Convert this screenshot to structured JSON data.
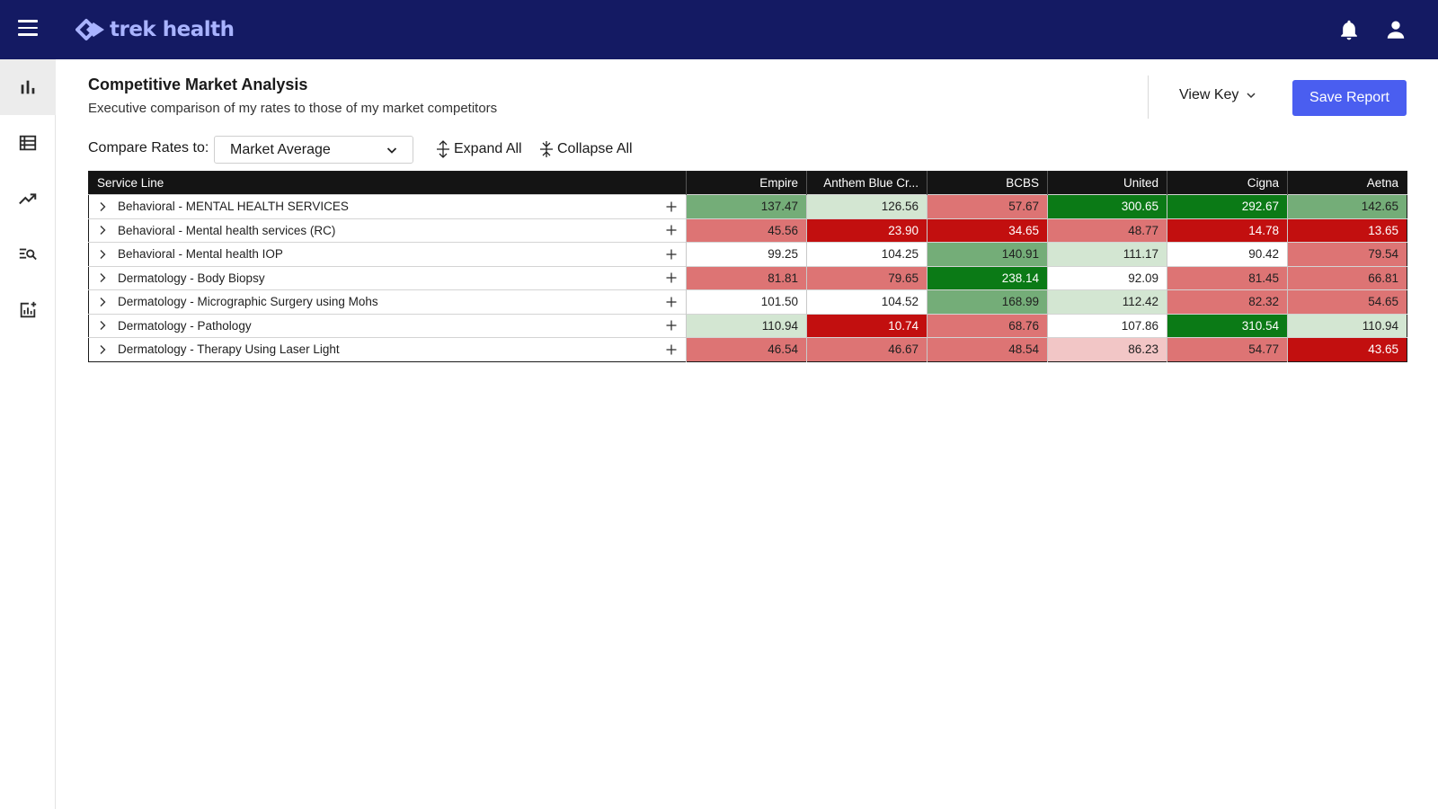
{
  "app": {
    "brand": "trek health"
  },
  "colors": {
    "topbar": "#141a63",
    "accent": "#4a5ef0",
    "strong_green": "#0b7a16",
    "medium_green": "#74ad78",
    "light_green": "#d3e6d2",
    "light_red": "#f2c6c6",
    "medium_red": "#dd7474",
    "strong_red": "#c20f0f"
  },
  "topbar": {
    "icons": [
      "menu-icon",
      "bell-icon",
      "user-icon"
    ]
  },
  "sidebar": {
    "items": [
      {
        "icon": "bar-chart-icon",
        "active": true
      },
      {
        "icon": "table-list-icon",
        "active": false
      },
      {
        "icon": "trend-icon",
        "active": false
      },
      {
        "icon": "list-search-icon",
        "active": false
      },
      {
        "icon": "add-chart-icon",
        "active": false
      }
    ]
  },
  "header": {
    "title": "Competitive Market Analysis",
    "subtitle": "Executive comparison of my rates to those of my market competitors",
    "view_key_label": "View Key",
    "save_label": "Save Report"
  },
  "controls": {
    "compare_label": "Compare Rates to:",
    "compare_value": "Market Average",
    "expand_all": "Expand All",
    "collapse_all": "Collapse All"
  },
  "table": {
    "columns": [
      "Service Line",
      "Empire",
      "Anthem Blue Cr...",
      "BCBS",
      "United",
      "Cigna",
      "Aetna"
    ],
    "rows": [
      {
        "service": "Behavioral - MENTAL HEALTH SERVICES",
        "values": [
          "137.47",
          "126.56",
          "57.67",
          "300.65",
          "292.67",
          "142.65"
        ],
        "levels": [
          "g2",
          "g1",
          "r2",
          "g3",
          "g3",
          "g2"
        ]
      },
      {
        "service": "Behavioral - Mental health services (RC)",
        "values": [
          "45.56",
          "23.90",
          "34.65",
          "48.77",
          "14.78",
          "13.65"
        ],
        "levels": [
          "r2",
          "r3",
          "r3",
          "r2",
          "r3",
          "r3"
        ]
      },
      {
        "service": "Behavioral - Mental health IOP",
        "values": [
          "99.25",
          "104.25",
          "140.91",
          "111.17",
          "90.42",
          "79.54"
        ],
        "levels": [
          "n",
          "n",
          "g2",
          "g1",
          "n",
          "r2"
        ]
      },
      {
        "service": "Dermatology - Body Biopsy",
        "values": [
          "81.81",
          "79.65",
          "238.14",
          "92.09",
          "81.45",
          "66.81"
        ],
        "levels": [
          "r2",
          "r2",
          "g3",
          "n",
          "r2",
          "r2"
        ]
      },
      {
        "service": "Dermatology - Micrographic Surgery using Mohs",
        "values": [
          "101.50",
          "104.52",
          "168.99",
          "112.42",
          "82.32",
          "54.65"
        ],
        "levels": [
          "n",
          "n",
          "g2",
          "g1",
          "r2",
          "r2"
        ]
      },
      {
        "service": "Dermatology - Pathology",
        "values": [
          "110.94",
          "10.74",
          "68.76",
          "107.86",
          "310.54",
          "110.94"
        ],
        "levels": [
          "g1",
          "r3",
          "r2",
          "n",
          "g3",
          "g1"
        ]
      },
      {
        "service": "Dermatology - Therapy Using Laser Light",
        "values": [
          "46.54",
          "46.67",
          "48.54",
          "86.23",
          "54.77",
          "43.65"
        ],
        "levels": [
          "r2",
          "r2",
          "r2",
          "r1",
          "r2",
          "r3"
        ]
      }
    ]
  }
}
